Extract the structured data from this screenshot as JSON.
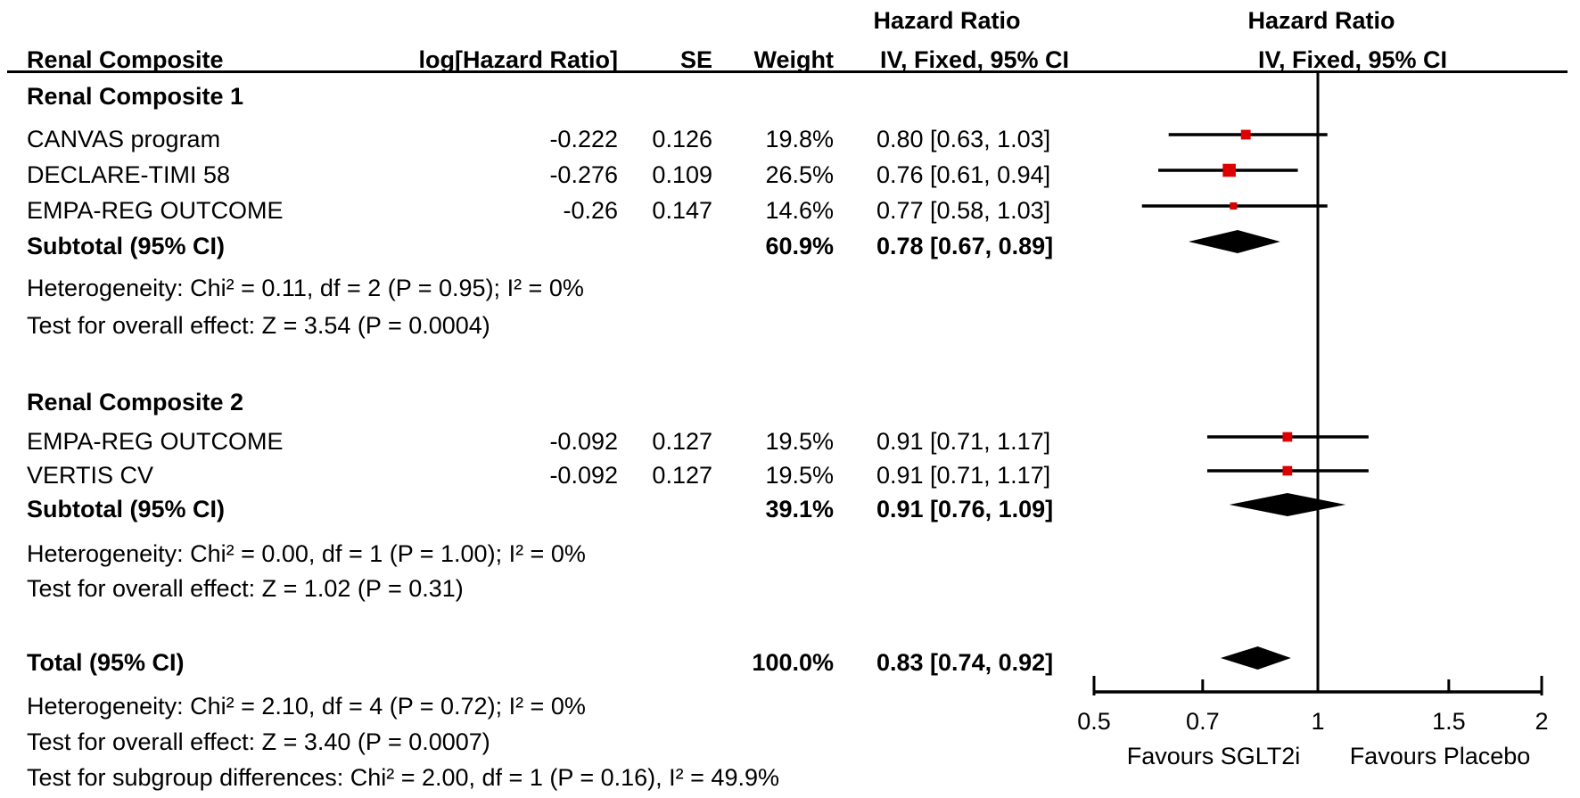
{
  "figure": {
    "outcome_label": "Renal Composite",
    "col_headers": {
      "log_hr": "log[Hazard Ratio]",
      "se": "SE",
      "weight": "Weight",
      "hazard_ratio": "Hazard Ratio",
      "method": "IV, Fixed, 95% CI"
    }
  },
  "rows": [
    {
      "type": "group",
      "label": "Renal Composite 1"
    },
    {
      "type": "study",
      "label": "CANVAS program",
      "log_hr": "-0.222",
      "se": "0.126",
      "weight": "19.8%",
      "ci": "0.80 [0.63, 1.03]",
      "est": 0.8,
      "lo": 0.63,
      "hi": 1.03,
      "weight_pct": 19.8
    },
    {
      "type": "study",
      "label": "DECLARE-TIMI 58",
      "log_hr": "-0.276",
      "se": "0.109",
      "weight": "26.5%",
      "ci": "0.76 [0.61, 0.94]",
      "est": 0.76,
      "lo": 0.61,
      "hi": 0.94,
      "weight_pct": 26.5
    },
    {
      "type": "study",
      "label": "EMPA-REG OUTCOME",
      "log_hr": "-0.26",
      "se": "0.147",
      "weight": "14.6%",
      "ci": "0.77 [0.58, 1.03]",
      "est": 0.77,
      "lo": 0.58,
      "hi": 1.03,
      "weight_pct": 14.6
    },
    {
      "type": "subtotal",
      "label": "Subtotal (95% CI)",
      "weight": "60.9%",
      "ci": "0.78 [0.67, 0.89]",
      "est": 0.78,
      "lo": 0.67,
      "hi": 0.89
    },
    {
      "type": "stats",
      "label": "Heterogeneity: Chi² = 0.11, df = 2 (P = 0.95); I² = 0%"
    },
    {
      "type": "stats",
      "label": "Test for overall effect: Z = 3.54 (P = 0.0004)"
    },
    {
      "type": "group",
      "label": "Renal Composite 2"
    },
    {
      "type": "study",
      "label": "EMPA-REG OUTCOME",
      "log_hr": "-0.092",
      "se": "0.127",
      "weight": "19.5%",
      "ci": "0.91 [0.71, 1.17]",
      "est": 0.91,
      "lo": 0.71,
      "hi": 1.17,
      "weight_pct": 19.5
    },
    {
      "type": "study",
      "label": "VERTIS CV",
      "log_hr": "-0.092",
      "se": "0.127",
      "weight": "19.5%",
      "ci": "0.91 [0.71, 1.17]",
      "est": 0.91,
      "lo": 0.71,
      "hi": 1.17,
      "weight_pct": 19.5
    },
    {
      "type": "subtotal",
      "label": "Subtotal (95% CI)",
      "weight": "39.1%",
      "ci": "0.91 [0.76, 1.09]",
      "est": 0.91,
      "lo": 0.76,
      "hi": 1.09
    },
    {
      "type": "stats",
      "label": "Heterogeneity: Chi² = 0.00, df = 1 (P = 1.00); I² = 0%"
    },
    {
      "type": "stats",
      "label": "Test for overall effect: Z = 1.02 (P = 0.31)"
    },
    {
      "type": "total",
      "label": "Total (95% CI)",
      "weight": "100.0%",
      "ci": "0.83 [0.74, 0.92]",
      "est": 0.83,
      "lo": 0.74,
      "hi": 0.92
    },
    {
      "type": "stats",
      "label": "Heterogeneity: Chi² = 2.10, df = 4 (P = 0.72); I² = 0%"
    },
    {
      "type": "stats",
      "label": "Test for overall effect: Z = 3.40 (P = 0.0007)"
    },
    {
      "type": "stats",
      "label": "Test for subgroup differences: Chi² = 2.00, df = 1 (P = 0.16), I² = 49.9%"
    }
  ],
  "chart_data": {
    "type": "forest",
    "x_scale": "log",
    "title": "Renal Composite",
    "effect_measure": "Hazard Ratio, IV, Fixed, 95% CI",
    "x_axis": {
      "min": 0.5,
      "max": 2,
      "null_line": 1,
      "tick_values": [
        0.5,
        0.7,
        1,
        1.5,
        2
      ],
      "tick_labels": [
        "0.5",
        "0.7",
        "1",
        "1.5",
        "2"
      ]
    },
    "favours_left": "Favours SGLT2i",
    "favours_right": "Favours Placebo",
    "marker_color": "#DD0000",
    "diamond_color": "#000000",
    "series": [
      {
        "group": "Renal Composite 1",
        "studies": [
          {
            "name": "CANVAS program",
            "hr": 0.8,
            "ci": [
              0.63,
              1.03
            ],
            "weight_pct": 19.8
          },
          {
            "name": "DECLARE-TIMI 58",
            "hr": 0.76,
            "ci": [
              0.61,
              0.94
            ],
            "weight_pct": 26.5
          },
          {
            "name": "EMPA-REG OUTCOME",
            "hr": 0.77,
            "ci": [
              0.58,
              1.03
            ],
            "weight_pct": 14.6
          }
        ],
        "subtotal": {
          "hr": 0.78,
          "ci": [
            0.67,
            0.89
          ],
          "weight_pct": 60.9
        }
      },
      {
        "group": "Renal Composite 2",
        "studies": [
          {
            "name": "EMPA-REG OUTCOME",
            "hr": 0.91,
            "ci": [
              0.71,
              1.17
            ],
            "weight_pct": 19.5
          },
          {
            "name": "VERTIS CV",
            "hr": 0.91,
            "ci": [
              0.71,
              1.17
            ],
            "weight_pct": 19.5
          }
        ],
        "subtotal": {
          "hr": 0.91,
          "ci": [
            0.76,
            1.09
          ],
          "weight_pct": 39.1
        }
      }
    ],
    "total": {
      "hr": 0.83,
      "ci": [
        0.74,
        0.92
      ],
      "weight_pct": 100.0
    }
  }
}
